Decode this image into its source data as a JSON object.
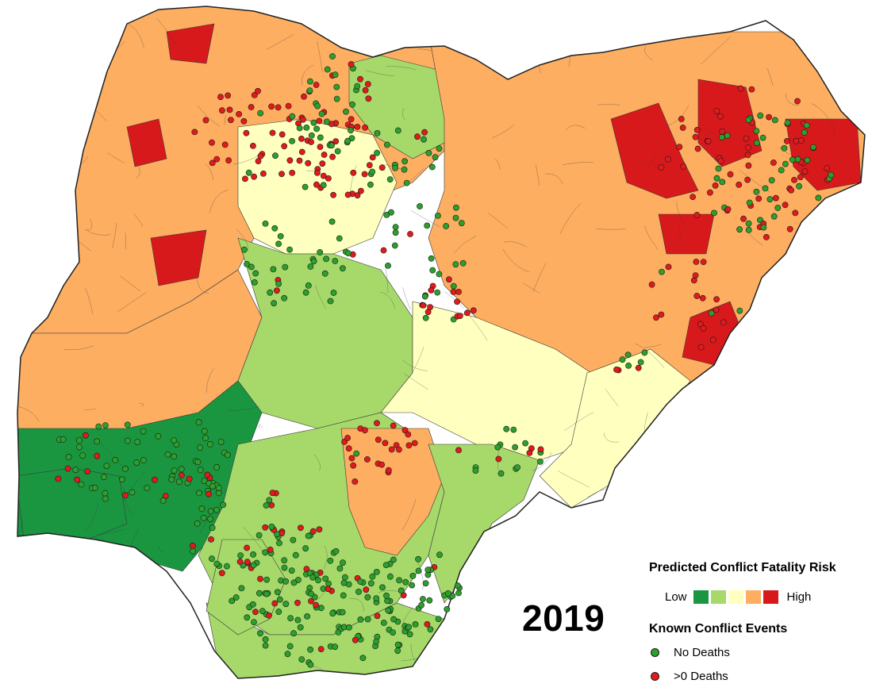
{
  "year_label": "2019",
  "legend": {
    "risk_title": "Predicted Conflict Fatality Risk",
    "low_label": "Low",
    "high_label": "High",
    "risk_colors": [
      "#1a9641",
      "#a6d96a",
      "#ffffbf",
      "#fdae61",
      "#d7191c"
    ],
    "events_title": "Known Conflict Events",
    "events": [
      {
        "label": "No Deaths",
        "color": "#2ca02c"
      },
      {
        "label": ">0 Deaths",
        "color": "#e31a1c"
      }
    ]
  },
  "map": {
    "border_color": "#3a3a3a",
    "region_risk_levels": {
      "northwest": 4,
      "northwest_core": 5,
      "northcentral_west": 3,
      "kwara": 4,
      "north_middle": 2,
      "plateau": 2,
      "northeast": 4,
      "borno_core": 5,
      "adamawa": 5,
      "east_middle": 3,
      "taraba": 3,
      "southwest": 1,
      "southwest_lagos": 1,
      "south_central": 2,
      "delta": 2,
      "southeast_cluster": 4,
      "cross_river": 2,
      "south_tip": 2
    }
  }
}
